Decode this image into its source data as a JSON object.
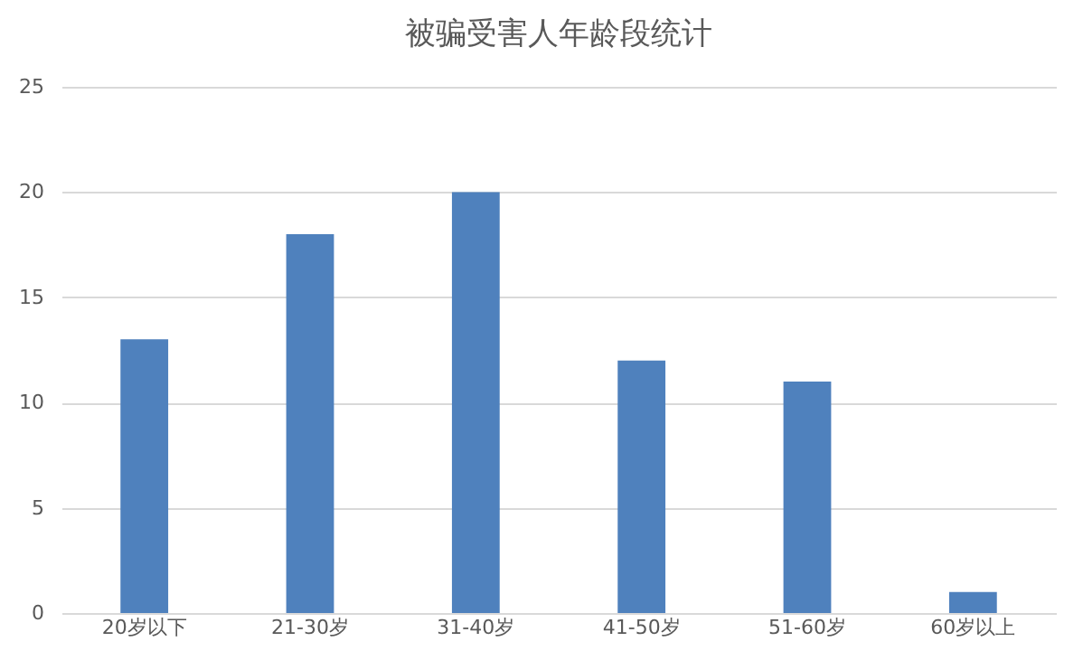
{
  "chart_data": {
    "type": "bar",
    "title": "被骗受害人年龄段统计",
    "categories": [
      "20岁以下",
      "21-30岁",
      "31-40岁",
      "41-50岁",
      "51-60岁",
      "60岁以上"
    ],
    "values": [
      13,
      18,
      20,
      12,
      11,
      1
    ],
    "color": "#4f81bd",
    "ylim": [
      0,
      25
    ],
    "yticks": [
      0,
      5,
      10,
      15,
      20,
      25
    ],
    "grid": "y"
  }
}
